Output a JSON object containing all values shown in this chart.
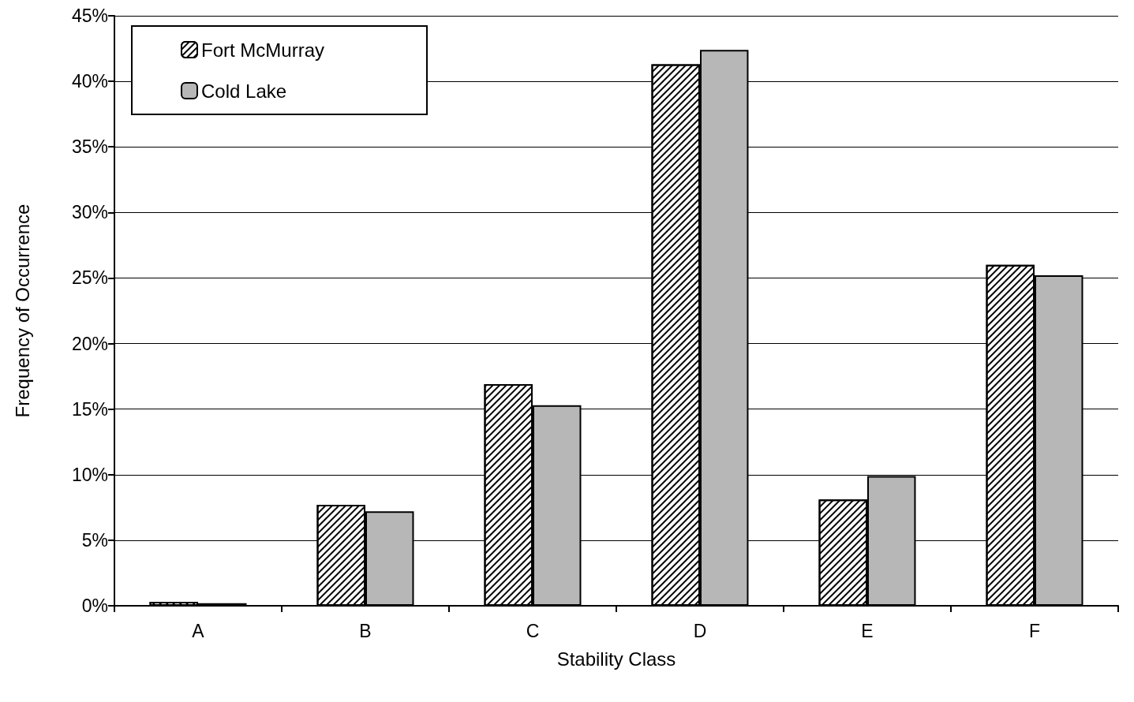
{
  "chart_data": {
    "type": "bar",
    "xlabel": "Stability Class",
    "ylabel": "Frequency of Occurrence",
    "categories": [
      "A",
      "B",
      "C",
      "D",
      "E",
      "F"
    ],
    "series": [
      {
        "name": "Fort McMurray",
        "color": "#ffffff",
        "values": [
          0.3,
          7.7,
          16.9,
          41.3,
          8.1,
          26.0
        ]
      },
      {
        "name": "Cold Lake",
        "color": "#b7b7b7",
        "values": [
          0.2,
          7.2,
          15.3,
          42.4,
          9.9,
          25.2
        ]
      }
    ],
    "ylim": [
      0,
      45
    ],
    "yticks": [
      {
        "value": 0,
        "label": "0%"
      },
      {
        "value": 5,
        "label": "5%"
      },
      {
        "value": 10,
        "label": "10%"
      },
      {
        "value": 15,
        "label": "15%"
      },
      {
        "value": 20,
        "label": "20%"
      },
      {
        "value": 25,
        "label": "25%"
      },
      {
        "value": 30,
        "label": "30%"
      },
      {
        "value": 35,
        "label": "35%"
      },
      {
        "value": 40,
        "label": "40%"
      },
      {
        "value": 45,
        "label": "45%"
      }
    ],
    "grid": "y",
    "legend": "top left"
  }
}
